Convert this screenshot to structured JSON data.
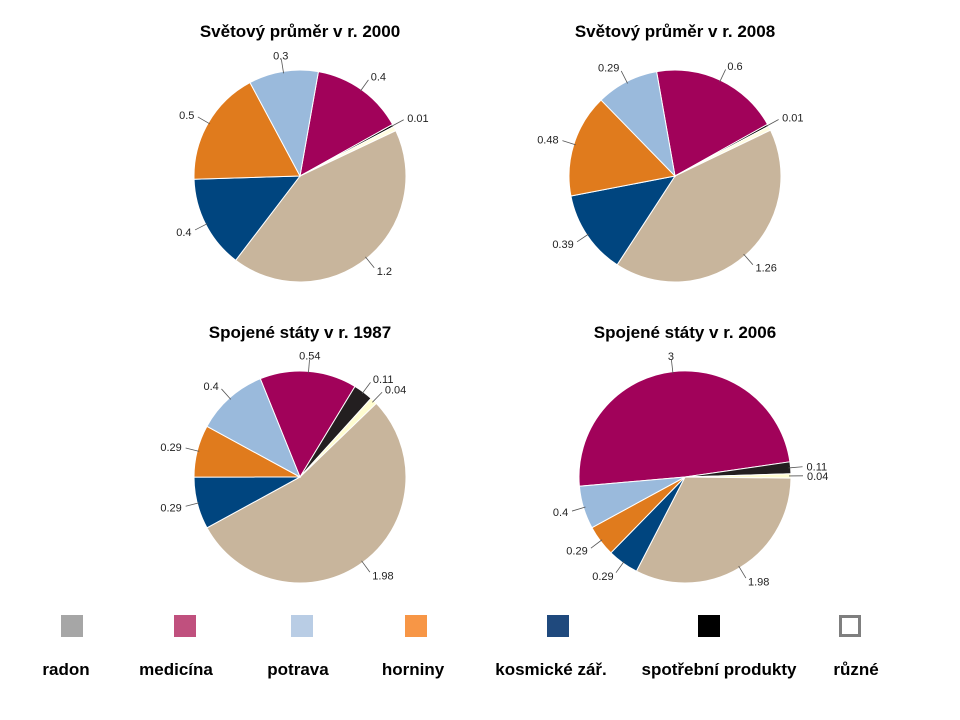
{
  "chart_data": [
    {
      "type": "pie",
      "title": "Světový průměr  v r. 2000",
      "slices": [
        {
          "category": "medicína",
          "value": 0.4,
          "label": "0.4",
          "color": "#A1025A"
        },
        {
          "category": "spotřební produkty",
          "value": 0.01,
          "label": "0.01",
          "color": "#000000"
        },
        {
          "category": "různé",
          "value": 0.02,
          "label": "",
          "color": "#FFFDE1"
        },
        {
          "category": "radon",
          "value": 1.2,
          "label": "1.2",
          "color": "#C8B59C"
        },
        {
          "category": "kosmické zář.",
          "value": 0.4,
          "label": "0.4",
          "color": "#00457F"
        },
        {
          "category": "horniny",
          "value": 0.5,
          "label": "0.5",
          "color": "#E07B1D"
        },
        {
          "category": "potrava",
          "value": 0.3,
          "label": "0.3",
          "color": "#9ABADC"
        }
      ]
    },
    {
      "type": "pie",
      "title": "Světový průměr  v r. 2008",
      "slices": [
        {
          "category": "medicína",
          "value": 0.6,
          "label": "0.6",
          "color": "#A1025A"
        },
        {
          "category": "spotřební produkty",
          "value": 0.01,
          "label": "0.01",
          "color": "#000000"
        },
        {
          "category": "různé",
          "value": 0.02,
          "label": "",
          "color": "#FFFDE1"
        },
        {
          "category": "radon",
          "value": 1.26,
          "label": "1.26",
          "color": "#C8B59C"
        },
        {
          "category": "kosmické zář.",
          "value": 0.39,
          "label": "0.39",
          "color": "#00457F"
        },
        {
          "category": "horniny",
          "value": 0.48,
          "label": "0.48",
          "color": "#E07B1D"
        },
        {
          "category": "potrava",
          "value": 0.29,
          "label": "0.29",
          "color": "#9ABADC"
        }
      ]
    },
    {
      "type": "pie",
      "title": "Spojené státy v r. 1987",
      "slices": [
        {
          "category": "medicína",
          "value": 0.54,
          "label": "0.54",
          "color": "#A1025A"
        },
        {
          "category": "spotřební produkty",
          "value": 0.11,
          "label": "0.11",
          "color": "#231F20"
        },
        {
          "category": "různé",
          "value": 0.04,
          "label": "0.04",
          "color": "#FFFDD0"
        },
        {
          "category": "radon",
          "value": 1.98,
          "label": "1.98",
          "color": "#C8B59C"
        },
        {
          "category": "kosmické zář.",
          "value": 0.29,
          "label": "0.29",
          "color": "#00457F"
        },
        {
          "category": "horniny",
          "value": 0.29,
          "label": "0.29",
          "color": "#E07B1D"
        },
        {
          "category": "potrava",
          "value": 0.4,
          "label": "0.4",
          "color": "#9ABADC"
        }
      ]
    },
    {
      "type": "pie",
      "title": "Spojené státy v r. 2006",
      "slices": [
        {
          "category": "medicína",
          "value": 3,
          "label": "3",
          "color": "#A1025A"
        },
        {
          "category": "spotřební produkty",
          "value": 0.11,
          "label": "0.11",
          "color": "#231F20"
        },
        {
          "category": "různé",
          "value": 0.04,
          "label": "0.04",
          "color": "#FFFDD0"
        },
        {
          "category": "radon",
          "value": 1.98,
          "label": "1.98",
          "color": "#C8B59C"
        },
        {
          "category": "kosmické zář.",
          "value": 0.29,
          "label": "0.29",
          "color": "#00457F"
        },
        {
          "category": "horniny",
          "value": 0.29,
          "label": "0.29",
          "color": "#E07B1D"
        },
        {
          "category": "potrava",
          "value": 0.4,
          "label": "0.4",
          "color": "#9ABADC"
        }
      ]
    }
  ],
  "legend": [
    {
      "label": "radon",
      "color": "#A6A6A6"
    },
    {
      "label": "medicína",
      "color": "#C0507E"
    },
    {
      "label": "potrava",
      "color": "#B9CDE5"
    },
    {
      "label": "horniny",
      "color": "#F79646"
    },
    {
      "label": "kosmické zář.",
      "color": "#1F497D"
    },
    {
      "label": "spotřební  produkty",
      "color": "#000000"
    },
    {
      "label": "různé",
      "color": "#FFFFFF"
    }
  ]
}
